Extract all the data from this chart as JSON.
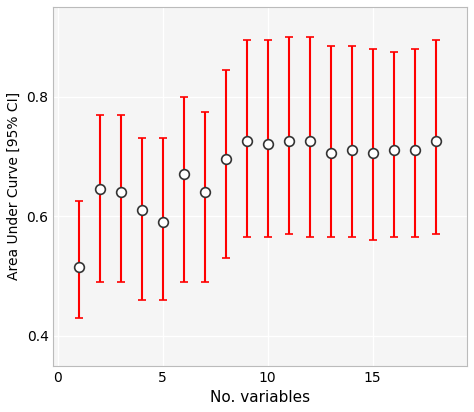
{
  "x": [
    1,
    2,
    3,
    4,
    5,
    6,
    7,
    8,
    9,
    10,
    11,
    12,
    13,
    14,
    15,
    16,
    17,
    18
  ],
  "auc": [
    0.515,
    0.645,
    0.64,
    0.61,
    0.59,
    0.67,
    0.64,
    0.695,
    0.725,
    0.72,
    0.725,
    0.725,
    0.705,
    0.71,
    0.705,
    0.71,
    0.71,
    0.725
  ],
  "ci_lower": [
    0.43,
    0.49,
    0.49,
    0.46,
    0.46,
    0.49,
    0.49,
    0.53,
    0.565,
    0.565,
    0.57,
    0.565,
    0.565,
    0.565,
    0.56,
    0.565,
    0.565,
    0.57
  ],
  "ci_upper": [
    0.625,
    0.77,
    0.77,
    0.73,
    0.73,
    0.8,
    0.775,
    0.845,
    0.895,
    0.895,
    0.9,
    0.9,
    0.885,
    0.885,
    0.88,
    0.875,
    0.88,
    0.895
  ],
  "xlabel": "No. variables",
  "ylabel": "Area Under Curve [95% CI]",
  "xlim": [
    -0.2,
    19.5
  ],
  "ylim": [
    0.35,
    0.95
  ],
  "yticks": [
    0.4,
    0.6,
    0.8
  ],
  "xticks": [
    0,
    5,
    10,
    15
  ],
  "error_color": "#FF0000",
  "marker_facecolor": "#FFFFFF",
  "marker_edgecolor": "#333333",
  "background_color": "#FFFFFF",
  "panel_background": "#F5F5F5",
  "grid_color": "#FFFFFF",
  "capsize": 3,
  "elinewidth": 1.5,
  "capthick": 1.5,
  "marker_size": 7,
  "marker_edgewidth": 1.2,
  "xlabel_fontsize": 11,
  "ylabel_fontsize": 10,
  "tick_fontsize": 10
}
